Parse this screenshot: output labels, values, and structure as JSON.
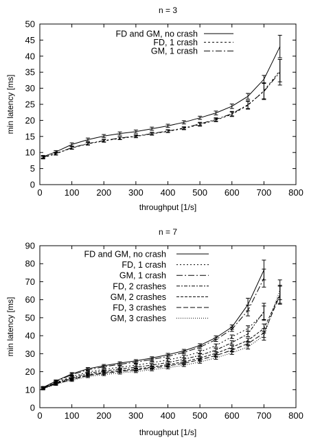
{
  "chart_data": [
    {
      "type": "line",
      "title": "n = 3",
      "xlabel": "throughput [1/s]",
      "ylabel": "min latency [ms]",
      "xlim": [
        0,
        800
      ],
      "ylim": [
        0,
        50
      ],
      "xticks": [
        0,
        100,
        200,
        300,
        400,
        500,
        600,
        700,
        800
      ],
      "yticks": [
        0,
        5,
        10,
        15,
        20,
        25,
        30,
        35,
        40,
        45,
        50
      ],
      "grid": false,
      "legend_position": "top-left",
      "x": [
        10,
        50,
        100,
        150,
        200,
        250,
        300,
        350,
        400,
        450,
        500,
        550,
        600,
        650,
        700,
        750
      ],
      "series": [
        {
          "name": "FD and GM, no crash",
          "dash": "solid",
          "values": [
            8.7,
            10.2,
            12.5,
            14.0,
            15.1,
            15.9,
            16.5,
            17.4,
            18.3,
            19.4,
            20.8,
            22.3,
            24.4,
            27.5,
            32.8,
            43.0
          ],
          "errors": [
            0.4,
            0.4,
            0.5,
            0.5,
            0.5,
            0.5,
            0.5,
            0.5,
            0.5,
            0.5,
            0.5,
            0.6,
            0.7,
            0.9,
            1.2,
            3.5
          ]
        },
        {
          "name": "FD, 1 crash",
          "dash": "3,3",
          "values": [
            8.4,
            9.6,
            11.4,
            12.7,
            13.6,
            14.4,
            15.0,
            15.8,
            16.6,
            17.5,
            18.7,
            20.1,
            21.9,
            24.7,
            29.2,
            35.5
          ],
          "errors": [
            0.4,
            0.4,
            0.4,
            0.4,
            0.4,
            0.4,
            0.4,
            0.4,
            0.4,
            0.4,
            0.5,
            0.5,
            0.7,
            1.2,
            2.5,
            3.5
          ]
        },
        {
          "name": "GM, 1 crash",
          "dash": "9,3,2,3",
          "values": [
            8.5,
            9.7,
            11.5,
            12.8,
            13.7,
            14.5,
            15.1,
            15.9,
            16.7,
            17.6,
            18.9,
            20.3,
            22.1,
            24.9,
            29.0,
            35.0
          ],
          "errors": [
            0.4,
            0.4,
            0.4,
            0.4,
            0.4,
            0.4,
            0.4,
            0.4,
            0.4,
            0.4,
            0.5,
            0.5,
            0.7,
            1.2,
            2.5,
            4.0
          ]
        }
      ]
    },
    {
      "type": "line",
      "title": "n = 7",
      "xlabel": "throughput [1/s]",
      "ylabel": "min latency [ms]",
      "xlim": [
        0,
        800
      ],
      "ylim": [
        0,
        90
      ],
      "xticks": [
        0,
        100,
        200,
        300,
        400,
        500,
        600,
        700,
        800
      ],
      "yticks": [
        0,
        10,
        20,
        30,
        40,
        50,
        60,
        70,
        80,
        90
      ],
      "grid": false,
      "legend_position": "top-left",
      "x": [
        10,
        50,
        100,
        150,
        200,
        250,
        300,
        350,
        400,
        450,
        500,
        550,
        600,
        650,
        700,
        750
      ],
      "series": [
        {
          "name": "FD and GM, no crash",
          "dash": "solid",
          "values": [
            11.2,
            14.8,
            18.8,
            21.6,
            23.3,
            24.8,
            26.0,
            27.6,
            29.4,
            31.6,
            34.6,
            38.9,
            44.8,
            57.3,
            76.5,
            null
          ],
          "errors": [
            0.6,
            0.6,
            0.7,
            0.7,
            0.7,
            0.7,
            0.7,
            0.7,
            0.8,
            0.8,
            0.9,
            1.0,
            1.2,
            3.5,
            5.5,
            0
          ]
        },
        {
          "name": "FD, 1 crash",
          "dash": "2,3",
          "values": [
            10.9,
            14.0,
            17.2,
            19.8,
            21.3,
            22.5,
            23.6,
            25.0,
            26.5,
            28.4,
            31.0,
            34.5,
            39.4,
            44.0,
            52.5,
            null
          ],
          "errors": [
            0.6,
            0.6,
            0.6,
            0.6,
            0.6,
            0.6,
            0.6,
            0.7,
            0.7,
            0.7,
            0.8,
            0.9,
            1.0,
            1.5,
            4.0,
            0
          ]
        },
        {
          "name": "GM, 1 crash",
          "dash": "9,3,2,3",
          "values": [
            11.0,
            14.5,
            18.3,
            21.0,
            22.7,
            24.1,
            25.3,
            26.8,
            28.5,
            30.7,
            33.6,
            37.8,
            43.6,
            54.0,
            72.0,
            null
          ],
          "errors": [
            0.6,
            0.6,
            0.7,
            0.7,
            0.7,
            0.7,
            0.7,
            0.7,
            0.8,
            0.8,
            0.9,
            1.0,
            1.2,
            3.0,
            5.0,
            0
          ]
        },
        {
          "name": "FD, 2 crashes",
          "dash": "5,2,2,2",
          "values": [
            10.8,
            13.8,
            16.6,
            19.1,
            20.4,
            21.5,
            22.5,
            23.7,
            25.1,
            26.9,
            29.1,
            32.0,
            36.2,
            41.0,
            53.5,
            null
          ],
          "errors": [
            0.6,
            0.6,
            0.6,
            0.6,
            0.6,
            0.6,
            0.6,
            0.6,
            0.7,
            0.7,
            0.8,
            0.9,
            1.0,
            1.5,
            4.5,
            0
          ]
        },
        {
          "name": "GM, 2 crashes",
          "dash": "4,2",
          "values": [
            10.7,
            13.5,
            16.0,
            18.3,
            19.6,
            20.6,
            21.5,
            22.6,
            23.9,
            25.5,
            27.6,
            30.2,
            33.6,
            37.4,
            44.0,
            63.0
          ],
          "errors": [
            0.6,
            0.6,
            0.6,
            0.6,
            0.6,
            0.6,
            0.6,
            0.6,
            0.6,
            0.7,
            0.7,
            0.8,
            0.9,
            1.2,
            2.5,
            5.0
          ]
        },
        {
          "name": "FD, 3 crashes",
          "dash": "7,3",
          "values": [
            10.6,
            13.3,
            15.7,
            17.9,
            19.1,
            20.1,
            20.9,
            22.0,
            23.2,
            24.7,
            26.6,
            29.0,
            32.0,
            35.6,
            41.5,
            62.5
          ],
          "errors": [
            0.6,
            0.6,
            0.6,
            0.6,
            0.6,
            0.6,
            0.6,
            0.6,
            0.6,
            0.7,
            0.7,
            0.8,
            0.9,
            1.2,
            2.5,
            5.0
          ]
        },
        {
          "name": "GM, 3 crashes",
          "dash": "1,2",
          "values": [
            10.5,
            13.0,
            15.2,
            17.3,
            18.4,
            19.3,
            20.1,
            21.1,
            22.2,
            23.6,
            25.4,
            27.7,
            30.5,
            33.8,
            40.0,
            65.5
          ],
          "errors": [
            0.6,
            0.6,
            0.6,
            0.6,
            0.6,
            0.6,
            0.6,
            0.6,
            0.6,
            0.7,
            0.7,
            0.8,
            0.9,
            1.2,
            2.5,
            5.5
          ]
        }
      ]
    }
  ]
}
